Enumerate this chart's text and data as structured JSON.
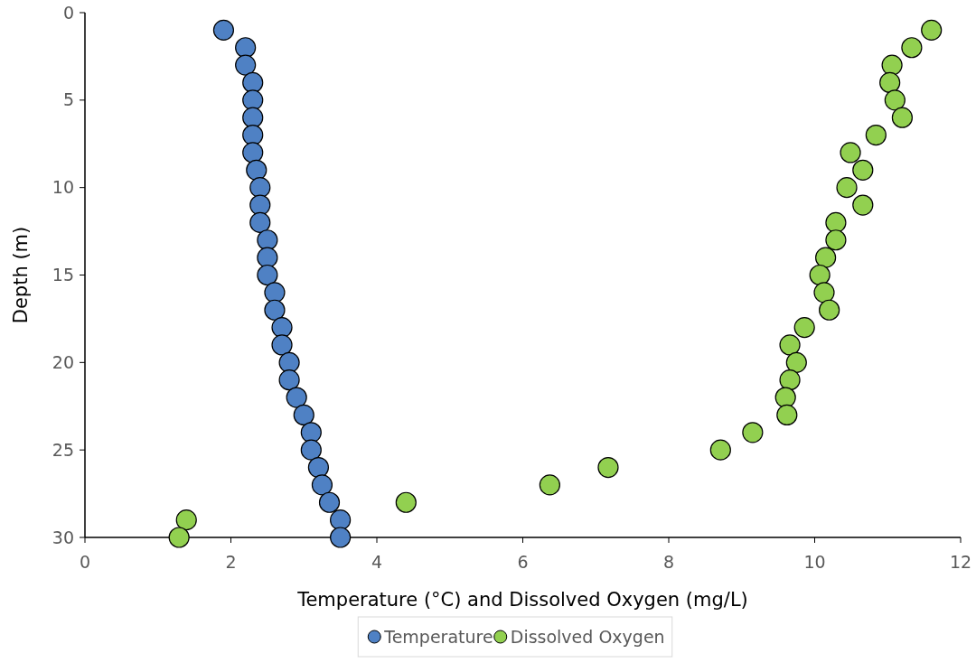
{
  "chart_data": {
    "type": "scatter",
    "xlabel": "Temperature (°C) and Dissolved Oxygen (mg/L)",
    "ylabel": "Depth (m)",
    "xlim": [
      0,
      12
    ],
    "xticks": [
      0,
      2,
      4,
      6,
      8,
      10,
      12
    ],
    "ylim": [
      30,
      0
    ],
    "yticks": [
      0,
      5,
      10,
      15,
      20,
      25,
      30
    ],
    "grid": false,
    "legend": "bottom",
    "marker": "circle",
    "series": [
      {
        "name": "Temperature",
        "color": "#4f81c4",
        "x": [
          1.9,
          2.2,
          2.2,
          2.3,
          2.3,
          2.3,
          2.3,
          2.3,
          2.35,
          2.4,
          2.4,
          2.4,
          2.5,
          2.5,
          2.5,
          2.6,
          2.6,
          2.7,
          2.7,
          2.8,
          2.8,
          2.9,
          3.0,
          3.1,
          3.1,
          3.2,
          3.25,
          3.35,
          3.5,
          3.5
        ],
        "values": [
          1,
          2,
          3,
          4,
          5,
          6,
          7,
          8,
          9,
          10,
          11,
          12,
          13,
          14,
          15,
          16,
          17,
          18,
          19,
          20,
          21,
          22,
          23,
          24,
          25,
          26,
          27,
          28,
          29,
          30
        ]
      },
      {
        "name": "Dissolved Oxygen",
        "color": "#92d050",
        "x": [
          11.6,
          11.33,
          11.06,
          11.03,
          11.1,
          11.2,
          10.84,
          10.49,
          10.66,
          10.44,
          10.66,
          10.29,
          10.29,
          10.15,
          10.07,
          10.13,
          10.2,
          9.86,
          9.66,
          9.75,
          9.66,
          9.6,
          9.62,
          9.15,
          8.71,
          7.17,
          6.37,
          4.4,
          1.39,
          1.29
        ],
        "values": [
          1,
          2,
          3,
          4,
          5,
          6,
          7,
          8,
          9,
          10,
          11,
          12,
          13,
          14,
          15,
          16,
          17,
          18,
          19,
          20,
          21,
          22,
          23,
          24,
          25,
          26,
          27,
          28,
          29,
          30
        ]
      }
    ]
  }
}
